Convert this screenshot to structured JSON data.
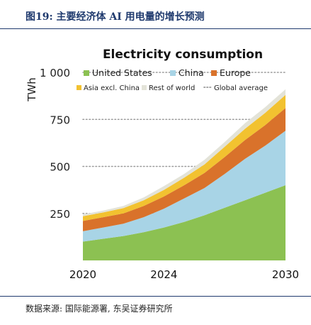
{
  "header": {
    "figure_title": "图19:  主要经济体 AI 用电量的增长预测"
  },
  "footer": {
    "source": "数据来源: 国际能源署, 东吴证券研究所"
  },
  "colors": {
    "header_text": "#1f3a6e",
    "united_states": "#8cc152",
    "china": "#a8d4e6",
    "europe": "#d9722b",
    "asia_excl_china": "#f2c230",
    "rest_of_world": "#e3e3d8",
    "global_average": "#9a9a9a"
  },
  "chart_data": {
    "type": "area",
    "stacked": true,
    "title": "Electricity consumption",
    "ylabel": "TWh",
    "xlabel": "",
    "xlim": [
      2020,
      2030
    ],
    "ylim": [
      0,
      1050
    ],
    "x_ticks": [
      2020,
      2024,
      2030
    ],
    "x_tick_labels": [
      "2020",
      "2024",
      "2030"
    ],
    "y_ticks": [
      250,
      500,
      750,
      1000
    ],
    "y_tick_labels": [
      "250",
      "500",
      "750",
      "1 000"
    ],
    "grid": {
      "horizontal_dotted": true,
      "vertical": false
    },
    "legend_position": "top",
    "x": [
      2020,
      2021,
      2022,
      2023,
      2024,
      2025,
      2026,
      2027,
      2028,
      2029,
      2030
    ],
    "series": [
      {
        "name": "United States",
        "color": "#8cc152",
        "values": [
          100,
          115,
          130,
          150,
          175,
          205,
          240,
          280,
          320,
          360,
          400
        ]
      },
      {
        "name": "China",
        "color": "#a8d4e6",
        "values": [
          55,
          60,
          65,
          80,
          100,
          125,
          145,
          180,
          220,
          250,
          290
        ]
      },
      {
        "name": "Europe",
        "color": "#d9722b",
        "values": [
          55,
          55,
          55,
          60,
          65,
          70,
          80,
          90,
          100,
          110,
          120
        ]
      },
      {
        "name": "Asia excl. China",
        "color": "#f2c230",
        "values": [
          25,
          25,
          28,
          30,
          35,
          40,
          45,
          55,
          60,
          65,
          70
        ]
      },
      {
        "name": "Rest of world",
        "color": "#e3e3d8",
        "values": [
          10,
          10,
          12,
          15,
          20,
          20,
          25,
          25,
          30,
          30,
          30
        ]
      }
    ],
    "legend": [
      {
        "label": "United States",
        "kind": "swatch",
        "color": "#8cc152"
      },
      {
        "label": "China",
        "kind": "swatch",
        "color": "#a8d4e6"
      },
      {
        "label": "Europe",
        "kind": "swatch",
        "color": "#d9722b"
      },
      {
        "label": "Asia excl. China",
        "kind": "swatch",
        "color": "#f2c230"
      },
      {
        "label": "Rest of world",
        "kind": "swatch",
        "color": "#e3e3d8"
      },
      {
        "label": "Global average",
        "kind": "dots",
        "color": "#9a9a9a"
      }
    ]
  }
}
